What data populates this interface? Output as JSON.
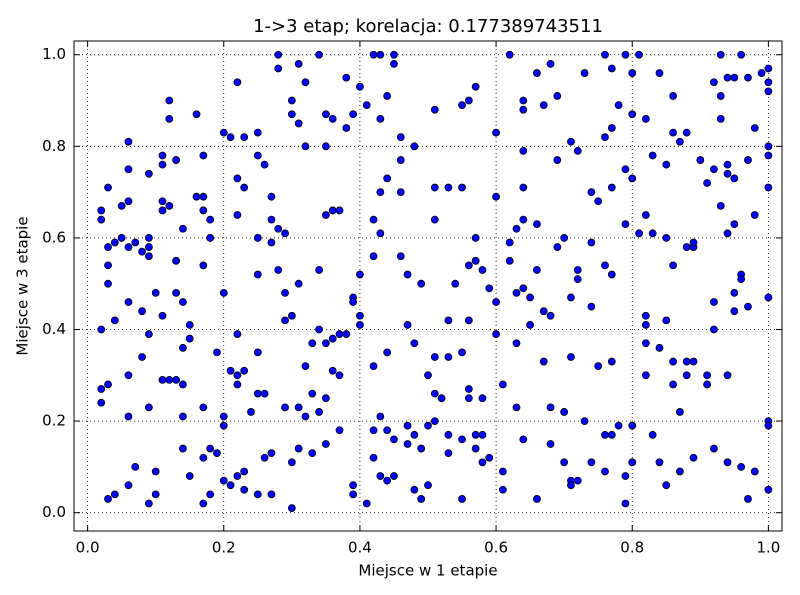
{
  "chart_data": {
    "type": "scatter",
    "title": "1->3 etap; korelacja: 0.177389743511",
    "x_label": "Miejsce w 1 etapie",
    "y_label": "Miejsce w 3 etapie",
    "color": "#0000ff",
    "edge_color": "#000000",
    "grid": true,
    "xlim": [
      -0.02,
      1.02
    ],
    "ylim": [
      -0.04,
      1.03
    ],
    "xticks": [
      {
        "value": 0,
        "label": "0.0"
      },
      0.2,
      0.4,
      0.6,
      0.8,
      {
        "value": 1,
        "label": "1.0"
      }
    ],
    "yticks": [
      {
        "value": 0,
        "label": "0.0"
      },
      0.2,
      0.4,
      0.6,
      0.8,
      {
        "value": 1,
        "label": "1.0"
      }
    ],
    "x": [
      0.28,
      0.34,
      0.42,
      0.43,
      0.45,
      0.62,
      0.76,
      0.79,
      0.81,
      0.93,
      0.96,
      1.0,
      0.28,
      0.31,
      0.45,
      0.68,
      0.66,
      0.77,
      0.8,
      0.84,
      0.95,
      0.99,
      0.38,
      0.73,
      0.94,
      0.97,
      0.22,
      0.32,
      0.4,
      0.57,
      0.69,
      0.86,
      0.92,
      0.93,
      1.0,
      1.0,
      0.12,
      0.3,
      0.41,
      0.44,
      0.55,
      0.56,
      0.64,
      0.67,
      0.78,
      0.8,
      0.16,
      0.3,
      0.35,
      0.36,
      0.39,
      0.43,
      0.51,
      0.64,
      0.82,
      0.93,
      0.12,
      0.31,
      0.38,
      0.46,
      0.6,
      0.86,
      0.88,
      0.87,
      0.98,
      0.2,
      0.21,
      0.23,
      0.25,
      0.32,
      0.35,
      0.48,
      0.71,
      0.76,
      0.77,
      0.06,
      0.11,
      0.11,
      0.13,
      0.17,
      0.25,
      0.26,
      0.46,
      0.64,
      0.72,
      0.69,
      0.83,
      0.85,
      0.9,
      0.92,
      0.94,
      0.97,
      1.0,
      1.0,
      0.09,
      0.06,
      0.22,
      0.44,
      0.79,
      0.8,
      0.94,
      0.95,
      0.91,
      0.03,
      0.05,
      0.06,
      0.11,
      0.16,
      0.17,
      0.23,
      0.27,
      0.43,
      0.46,
      0.51,
      0.53,
      0.55,
      0.6,
      0.64,
      0.74,
      0.75,
      0.77,
      1.0,
      0.02,
      0.02,
      0.11,
      0.12,
      0.17,
      0.18,
      0.22,
      0.27,
      0.35,
      0.36,
      0.37,
      0.42,
      0.51,
      0.63,
      0.64,
      0.66,
      0.79,
      0.82,
      0.93,
      0.98,
      0.03,
      0.04,
      0.05,
      0.06,
      0.07,
      0.08,
      0.09,
      0.09,
      0.14,
      0.18,
      0.25,
      0.28,
      0.29,
      0.27,
      0.43,
      0.57,
      0.62,
      0.69,
      0.7,
      0.74,
      0.81,
      0.83,
      0.85,
      0.88,
      0.89,
      0.89,
      0.94,
      0.95,
      0.03,
      0.09,
      0.13,
      0.17,
      0.25,
      0.28,
      0.34,
      0.4,
      0.42,
      0.47,
      0.46,
      0.56,
      0.57,
      0.62,
      0.58,
      0.66,
      0.72,
      0.72,
      0.76,
      0.77,
      0.86,
      0.96,
      0.96,
      0.03,
      0.1,
      0.13,
      0.14,
      0.2,
      0.29,
      0.31,
      0.39,
      0.39,
      0.49,
      0.54,
      0.59,
      0.6,
      0.63,
      0.64,
      0.65,
      0.71,
      0.95,
      0.95,
      0.97,
      1.0,
      0.92,
      0.02,
      0.04,
      0.06,
      0.08,
      0.11,
      0.15,
      0.15,
      0.22,
      0.29,
      0.3,
      0.34,
      0.37,
      0.38,
      0.4,
      0.4,
      0.47,
      0.53,
      0.56,
      0.6,
      0.63,
      0.65,
      0.67,
      0.68,
      0.74,
      0.82,
      0.82,
      0.85,
      0.92,
      0.09,
      0.08,
      0.14,
      0.19,
      0.25,
      0.33,
      0.35,
      0.36,
      0.44,
      0.48,
      0.51,
      0.53,
      0.55,
      0.82,
      0.84,
      0.86,
      0.88,
      0.89,
      0.71,
      0.77,
      0.75,
      0.02,
      0.03,
      0.06,
      0.11,
      0.12,
      0.13,
      0.14,
      0.21,
      0.22,
      0.22,
      0.23,
      0.25,
      0.26,
      0.32,
      0.33,
      0.35,
      0.36,
      0.37,
      0.42,
      0.5,
      0.51,
      0.52,
      0.56,
      0.56,
      0.58,
      0.61,
      0.67,
      0.82,
      0.86,
      0.88,
      0.91,
      0.91,
      0.94,
      0.02,
      0.06,
      0.09,
      0.14,
      0.17,
      0.2,
      0.2,
      0.24,
      0.29,
      0.31,
      0.32,
      0.34,
      0.37,
      0.42,
      0.43,
      0.44,
      0.47,
      0.48,
      0.5,
      0.51,
      0.53,
      0.55,
      0.57,
      0.58,
      0.63,
      0.64,
      0.68,
      0.7,
      0.73,
      0.76,
      0.77,
      0.78,
      0.8,
      0.83,
      0.87,
      1.0,
      1.0,
      0.07,
      0.1,
      0.14,
      0.15,
      0.17,
      0.18,
      0.19,
      0.2,
      0.22,
      0.23,
      0.26,
      0.27,
      0.3,
      0.31,
      0.33,
      0.35,
      0.42,
      0.43,
      0.45,
      0.47,
      0.49,
      0.53,
      0.57,
      0.58,
      0.59,
      0.61,
      0.68,
      0.7,
      0.71,
      0.72,
      0.74,
      0.76,
      0.79,
      0.8,
      0.84,
      0.87,
      0.89,
      0.92,
      0.94,
      0.96,
      0.98,
      0.03,
      0.04,
      0.06,
      0.09,
      0.1,
      0.17,
      0.18,
      0.21,
      0.23,
      0.25,
      0.27,
      0.3,
      0.39,
      0.39,
      0.41,
      0.44,
      0.45,
      0.48,
      0.49,
      0.5,
      0.55,
      0.61,
      0.66,
      0.71,
      0.79,
      0.85,
      0.97,
      1.0
    ],
    "values": [
      1.0,
      1.0,
      1.0,
      1.0,
      1.0,
      1.0,
      1.0,
      1.0,
      1.0,
      1.0,
      1.0,
      0.97,
      0.97,
      0.98,
      0.98,
      0.98,
      0.96,
      0.97,
      0.96,
      0.96,
      0.95,
      0.96,
      0.95,
      0.96,
      0.95,
      0.95,
      0.94,
      0.94,
      0.93,
      0.93,
      0.91,
      0.91,
      0.94,
      0.91,
      0.94,
      0.92,
      0.9,
      0.9,
      0.89,
      0.91,
      0.89,
      0.9,
      0.9,
      0.89,
      0.89,
      0.87,
      0.87,
      0.87,
      0.87,
      0.86,
      0.87,
      0.86,
      0.88,
      0.88,
      0.86,
      0.86,
      0.86,
      0.85,
      0.84,
      0.82,
      0.83,
      0.83,
      0.83,
      0.81,
      0.84,
      0.83,
      0.82,
      0.82,
      0.83,
      0.8,
      0.8,
      0.8,
      0.81,
      0.82,
      0.84,
      0.81,
      0.78,
      0.76,
      0.77,
      0.78,
      0.78,
      0.76,
      0.77,
      0.79,
      0.79,
      0.77,
      0.78,
      0.76,
      0.77,
      0.75,
      0.76,
      0.77,
      0.8,
      0.78,
      0.74,
      0.75,
      0.73,
      0.73,
      0.75,
      0.73,
      0.74,
      0.73,
      0.72,
      0.71,
      0.67,
      0.68,
      0.68,
      0.69,
      0.69,
      0.71,
      0.69,
      0.7,
      0.7,
      0.71,
      0.71,
      0.71,
      0.69,
      0.71,
      0.7,
      0.68,
      0.71,
      0.71,
      0.66,
      0.64,
      0.66,
      0.67,
      0.66,
      0.64,
      0.65,
      0.64,
      0.65,
      0.66,
      0.66,
      0.64,
      0.64,
      0.62,
      0.64,
      0.63,
      0.63,
      0.65,
      0.67,
      0.65,
      0.58,
      0.59,
      0.6,
      0.58,
      0.59,
      0.57,
      0.6,
      0.58,
      0.62,
      0.6,
      0.6,
      0.62,
      0.61,
      0.59,
      0.61,
      0.6,
      0.59,
      0.58,
      0.6,
      0.59,
      0.61,
      0.61,
      0.6,
      0.58,
      0.58,
      0.59,
      0.61,
      0.63,
      0.54,
      0.56,
      0.55,
      0.54,
      0.52,
      0.53,
      0.53,
      0.52,
      0.56,
      0.52,
      0.56,
      0.54,
      0.55,
      0.55,
      0.53,
      0.53,
      0.53,
      0.51,
      0.54,
      0.52,
      0.54,
      0.52,
      0.51,
      0.5,
      0.48,
      0.48,
      0.46,
      0.48,
      0.48,
      0.5,
      0.47,
      0.46,
      0.5,
      0.5,
      0.49,
      0.46,
      0.48,
      0.49,
      0.47,
      0.47,
      0.48,
      0.44,
      0.45,
      0.47,
      0.46,
      0.4,
      0.42,
      0.46,
      0.44,
      0.43,
      0.41,
      0.38,
      0.39,
      0.42,
      0.43,
      0.4,
      0.39,
      0.39,
      0.43,
      0.41,
      0.41,
      0.42,
      0.42,
      0.39,
      0.37,
      0.41,
      0.44,
      0.43,
      0.45,
      0.41,
      0.43,
      0.42,
      0.4,
      0.39,
      0.34,
      0.36,
      0.35,
      0.35,
      0.37,
      0.37,
      0.38,
      0.35,
      0.37,
      0.34,
      0.34,
      0.35,
      0.37,
      0.36,
      0.33,
      0.33,
      0.33,
      0.34,
      0.33,
      0.32,
      0.27,
      0.28,
      0.3,
      0.29,
      0.29,
      0.29,
      0.28,
      0.31,
      0.28,
      0.3,
      0.31,
      0.26,
      0.26,
      0.32,
      0.26,
      0.25,
      0.31,
      0.3,
      0.32,
      0.3,
      0.26,
      0.25,
      0.27,
      0.25,
      0.25,
      0.28,
      0.33,
      0.3,
      0.28,
      0.3,
      0.3,
      0.28,
      0.3,
      0.24,
      0.21,
      0.23,
      0.21,
      0.23,
      0.21,
      0.19,
      0.22,
      0.23,
      0.23,
      0.21,
      0.22,
      0.18,
      0.18,
      0.21,
      0.18,
      0.19,
      0.17,
      0.19,
      0.2,
      0.17,
      0.16,
      0.17,
      0.17,
      0.23,
      0.16,
      0.23,
      0.22,
      0.2,
      0.17,
      0.17,
      0.19,
      0.19,
      0.17,
      0.22,
      0.2,
      0.19,
      0.1,
      0.09,
      0.14,
      0.08,
      0.12,
      0.14,
      0.13,
      0.07,
      0.08,
      0.09,
      0.12,
      0.13,
      0.11,
      0.14,
      0.13,
      0.15,
      0.12,
      0.08,
      0.16,
      0.15,
      0.14,
      0.13,
      0.14,
      0.11,
      0.12,
      0.09,
      0.15,
      0.11,
      0.07,
      0.07,
      0.11,
      0.09,
      0.08,
      0.11,
      0.11,
      0.09,
      0.12,
      0.14,
      0.11,
      0.1,
      0.09,
      0.03,
      0.04,
      0.06,
      0.02,
      0.04,
      0.02,
      0.04,
      0.06,
      0.05,
      0.04,
      0.04,
      0.01,
      0.04,
      0.06,
      0.02,
      0.07,
      0.08,
      0.05,
      0.03,
      0.06,
      0.03,
      0.05,
      0.03,
      0.06,
      0.02,
      0.06,
      0.03,
      0.05
    ]
  }
}
